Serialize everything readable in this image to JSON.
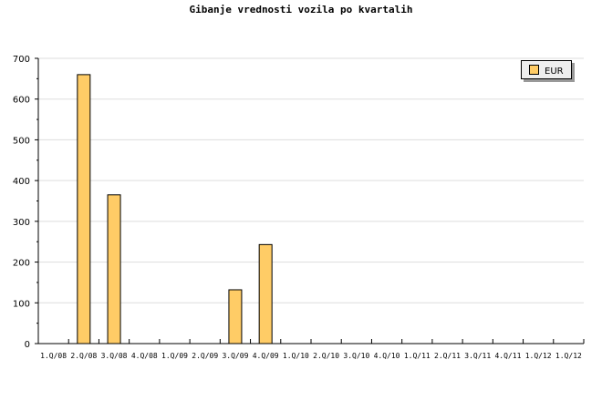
{
  "chart_data": {
    "type": "bar",
    "title": "Gibanje vrednosti vozila po kvartalih",
    "xlabel": "",
    "ylabel": "",
    "categories": [
      "1.Q/08",
      "2.Q/08",
      "3.Q/08",
      "4.Q/08",
      "1.Q/09",
      "2.Q/09",
      "3.Q/09",
      "4.Q/09",
      "1.Q/10",
      "2.Q/10",
      "3.Q/10",
      "4.Q/10",
      "1.Q/11",
      "2.Q/11",
      "3.Q/11",
      "4.Q/11",
      "1.Q/12",
      "1.Q/12"
    ],
    "series": [
      {
        "name": "EUR",
        "color": "#FFCC66",
        "values": [
          0,
          660,
          365,
          0,
          0,
          0,
          132,
          243,
          0,
          0,
          0,
          0,
          0,
          0,
          0,
          0,
          0,
          0
        ]
      }
    ],
    "ylim": [
      0,
      700
    ],
    "yticks": [
      0,
      100,
      200,
      300,
      400,
      500,
      600,
      700
    ],
    "grid": true,
    "legend_position": "top-right"
  }
}
